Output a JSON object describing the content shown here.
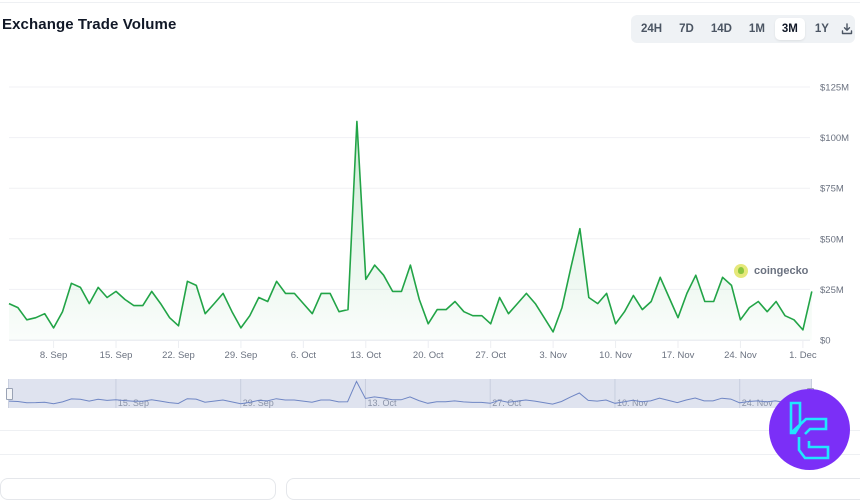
{
  "header": {
    "title": "Exchange Trade Volume"
  },
  "range_selector": {
    "options": [
      "24H",
      "7D",
      "14D",
      "1M",
      "3M",
      "1Y"
    ],
    "active": "3M",
    "download_icon": "download-icon"
  },
  "watermark": {
    "icon": "coingecko-logo-icon",
    "text": "coingecko"
  },
  "colors": {
    "line": "#22a447",
    "fill_top": "#d6f0dc",
    "navigator_bg": "#dfe3ef",
    "navigator_line": "#6f86c4",
    "badge": "#7b2ff7",
    "badge_glyph": "#21e6ff"
  },
  "chart_data": {
    "type": "area",
    "title": "Exchange Trade Volume",
    "xlabel": "",
    "ylabel": "",
    "ylim": [
      0,
      125
    ],
    "y_unit": "$M",
    "y_ticks": [
      "$0",
      "$25M",
      "$50M",
      "$75M",
      "$100M",
      "$125M"
    ],
    "x_ticks": [
      "8. Sep",
      "15. Sep",
      "22. Sep",
      "29. Sep",
      "6. Oct",
      "13. Oct",
      "20. Oct",
      "27. Oct",
      "3. Nov",
      "10. Nov",
      "17. Nov",
      "24. Nov",
      "1. Dec"
    ],
    "grid": true,
    "legend": null,
    "navigator_labels": [
      "15. Sep",
      "29. Sep",
      "13. Oct",
      "27. Oct",
      "10. Nov",
      "24. Nov"
    ],
    "series": [
      {
        "name": "Exchange Trade Volume (USD)",
        "start_date": "3. Sep",
        "interval": "1 day",
        "values": [
          18,
          16,
          10,
          11,
          13,
          6,
          14,
          28,
          26,
          18,
          26,
          21,
          24,
          20,
          17,
          17,
          24,
          18,
          11,
          7,
          29,
          27,
          13,
          18,
          23,
          14,
          6,
          12,
          21,
          19,
          29,
          23,
          23,
          18,
          13,
          23,
          23,
          14,
          15,
          108,
          30,
          37,
          32,
          24,
          24,
          37,
          20,
          8,
          15,
          15,
          19,
          14,
          12,
          12,
          8,
          21,
          13,
          18,
          23,
          18,
          11,
          4,
          16,
          36,
          55,
          21,
          18,
          23,
          8,
          14,
          22,
          15,
          19,
          31,
          21,
          11,
          23,
          32,
          19,
          19,
          31,
          27,
          10,
          16,
          19,
          14,
          19,
          12,
          10,
          5,
          24
        ]
      }
    ]
  },
  "brand_badge": {
    "icon": "tradingfinder-logo-icon"
  }
}
